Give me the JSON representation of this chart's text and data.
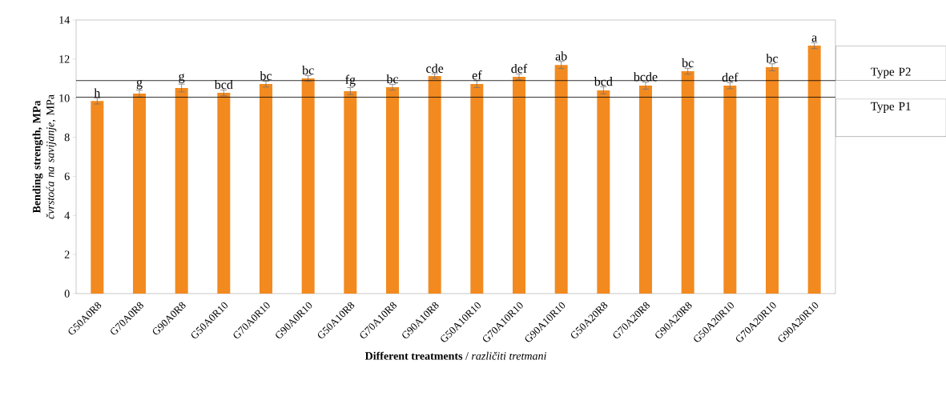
{
  "chart_data": {
    "type": "bar",
    "xlabel": "**Different treatments** / *različiti tretmani*",
    "ylabel": "**Bending strength, MPa** *čvrstoća na savijanje*, MPa",
    "categories": [
      "G50A0R8",
      "G70A0R8",
      "G90A0R8",
      "G50A0R10",
      "G70A0R10",
      "G90A0R10",
      "G50A10R8",
      "G70A10R8",
      "G90A10R8",
      "G50A10R10",
      "G70A10R10",
      "G90A10R10",
      "G50A20R8",
      "G70A20R8",
      "G90A20R8",
      "G50A20R10",
      "G70A20R10",
      "G90A20R10"
    ],
    "values": [
      9.85,
      10.23,
      10.52,
      10.27,
      10.72,
      11.01,
      10.36,
      10.56,
      11.13,
      10.72,
      11.09,
      11.7,
      10.4,
      10.64,
      11.38,
      10.64,
      11.58,
      12.69
    ],
    "errors": [
      0.15,
      0.18,
      0.2,
      0.15,
      0.15,
      0.15,
      0.18,
      0.15,
      0.12,
      0.18,
      0.15,
      0.18,
      0.18,
      0.18,
      0.15,
      0.15,
      0.18,
      0.15
    ],
    "color": "#f28a20",
    "ylim": [
      0,
      14
    ],
    "yticks": [
      0,
      2,
      4,
      6,
      8,
      10,
      12,
      14
    ],
    "ref_lines": [
      {
        "axis": "y",
        "value": 10.9,
        "label": "Type P2",
        "color": "#000000"
      },
      {
        "axis": "y",
        "value": 10.05,
        "label": "Type P1",
        "color": "#000000"
      }
    ],
    "annotations": [
      {
        "text": "h",
        "x": "G50A0R8",
        "y": 9.85
      },
      {
        "text": "g",
        "x": "G70A0R8",
        "y": 10.23
      },
      {
        "text": "g",
        "x": "G90A0R8",
        "y": 10.52
      },
      {
        "text": "bcd",
        "x": "G50A0R10",
        "y": 10.27
      },
      {
        "text": "bc",
        "x": "G70A0R10",
        "y": 10.72
      },
      {
        "text": "bc",
        "x": "G90A0R10",
        "y": 11.01
      },
      {
        "text": "fg",
        "x": "G50A10R8",
        "y": 10.36
      },
      {
        "text": "bc",
        "x": "G70A10R8",
        "y": 10.56
      },
      {
        "text": "cde",
        "x": "G90A10R8",
        "y": 11.13
      },
      {
        "text": "ef",
        "x": "G50A10R10",
        "y": 10.72
      },
      {
        "text": "def",
        "x": "G70A10R10",
        "y": 11.09
      },
      {
        "text": "ab",
        "x": "G90A10R10",
        "y": 11.7
      },
      {
        "text": "bcd",
        "x": "G50A20R8",
        "y": 10.4
      },
      {
        "text": "bcde",
        "x": "G70A20R8",
        "y": 10.64
      },
      {
        "text": "bc",
        "x": "G90A20R8",
        "y": 11.38
      },
      {
        "text": "def",
        "x": "G50A20R10",
        "y": 10.64
      },
      {
        "text": "bc",
        "x": "G70A20R10",
        "y": 11.58
      },
      {
        "text": "a",
        "x": "G90A20R10",
        "y": 12.69
      }
    ]
  }
}
